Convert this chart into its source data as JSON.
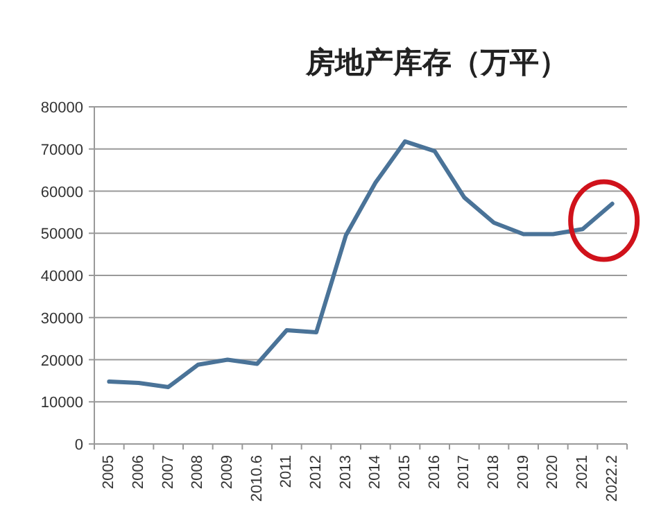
{
  "chart_data": {
    "type": "line",
    "title": "房地产库存（万平）",
    "categories": [
      "2005",
      "2006",
      "2007",
      "2008",
      "2009",
      "2010.6",
      "2011",
      "2012",
      "2013",
      "2014",
      "2015",
      "2016",
      "2017",
      "2018",
      "2019",
      "2020",
      "2021",
      "2022.2"
    ],
    "series": [
      {
        "color": "#4a7398",
        "values": [
          14800,
          14500,
          13500,
          18800,
          20000,
          19000,
          27000,
          26500,
          49500,
          62000,
          71800,
          69500,
          58500,
          52500,
          49800,
          49800,
          51000,
          57000
        ]
      }
    ],
    "ylim": [
      0,
      80000
    ],
    "yticks": [
      0,
      10000,
      20000,
      30000,
      40000,
      50000,
      60000,
      70000,
      80000
    ],
    "grid": "y",
    "marker": "none",
    "line_style": "solid"
  }
}
